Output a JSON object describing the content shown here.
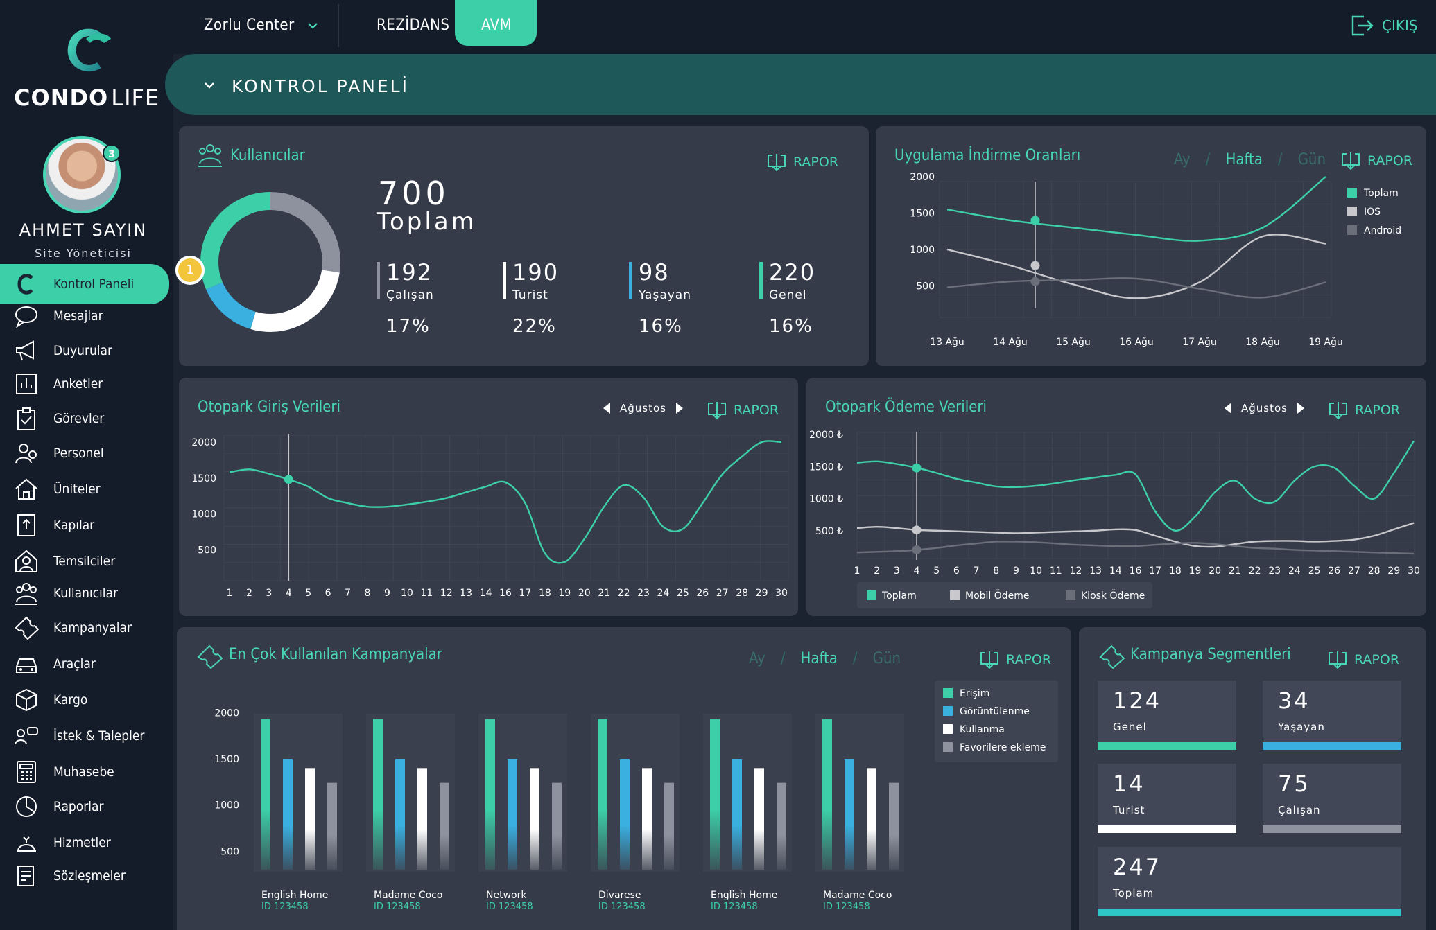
{
  "colors": {
    "teal": "#3ccfa8",
    "blue": "#3ab0e0",
    "white": "#ffffff",
    "gray": "#8e929e",
    "darkgray": "#5c6270",
    "yellow": "#f3c53c"
  },
  "top": {
    "location": "Zorlu Center",
    "tab_rezidans": "REZİDANS",
    "tab_avm": "AVM",
    "logout": "ÇIKIŞ"
  },
  "brand": {
    "condo": "CONDO",
    "life": "LIFE"
  },
  "profile": {
    "name": "AHMET SAYIN",
    "role": "Site Yöneticisi",
    "badge": "3"
  },
  "page": {
    "title": "KONTROL PANELİ"
  },
  "sidebar": {
    "items": [
      {
        "label": "Kontrol Paneli",
        "icon": "condo-logo-icon"
      },
      {
        "label": "Mesajlar",
        "icon": "chat-icon"
      },
      {
        "label": "Duyurular",
        "icon": "megaphone-icon"
      },
      {
        "label": "Anketler",
        "icon": "poll-chart-icon"
      },
      {
        "label": "Görevler",
        "icon": "clipboard-check-icon"
      },
      {
        "label": "Personel",
        "icon": "staff-icon"
      },
      {
        "label": "Üniteler",
        "icon": "home-icon"
      },
      {
        "label": "Kapılar",
        "icon": "door-icon"
      },
      {
        "label": "Temsilciler",
        "icon": "representative-icon"
      },
      {
        "label": "Kullanıcılar",
        "icon": "users-icon"
      },
      {
        "label": "Kampanyalar",
        "icon": "ticket-icon"
      },
      {
        "label": "Araçlar",
        "icon": "car-icon"
      },
      {
        "label": "Kargo",
        "icon": "package-icon"
      },
      {
        "label": "İstek & Talepler",
        "icon": "request-icon"
      },
      {
        "label": "Muhasebe",
        "icon": "calculator-icon"
      },
      {
        "label": "Raporlar",
        "icon": "report-icon"
      },
      {
        "label": "Hizmetler",
        "icon": "service-icon"
      },
      {
        "label": "Sözleşmeler",
        "icon": "contract-icon"
      }
    ]
  },
  "common": {
    "rapor": "RAPOR",
    "ay": "Ay",
    "hafta": "Hafta",
    "gun": "Gün",
    "sep": "/",
    "month": "Ağustos"
  },
  "users": {
    "title": "Kullanıcılar",
    "total": "700",
    "total_label": "Toplam",
    "marker": "1",
    "stats": [
      {
        "value": "192",
        "label": "Çalışan",
        "pct": "17%"
      },
      {
        "value": "190",
        "label": "Turist",
        "pct": "22%"
      },
      {
        "value": "98",
        "label": "Yaşayan",
        "pct": "16%"
      },
      {
        "value": "220",
        "label": "Genel",
        "pct": "16%"
      }
    ]
  },
  "downloads": {
    "title": "Uygulama İndirme Oranları"
  },
  "parking_entry": {
    "title": "Otopark Giriş Verileri"
  },
  "parking_payment": {
    "title": "Otopark Ödeme Verileri"
  },
  "campaigns": {
    "title": "En Çok Kullanılan Kampanyalar"
  },
  "segments": {
    "title": "Kampanya Segmentleri",
    "items": [
      {
        "value": "124",
        "label": "Genel",
        "color": "#3ccfa8"
      },
      {
        "value": "34",
        "label": "Yaşayan",
        "color": "#3ab0e0"
      },
      {
        "value": "14",
        "label": "Turist",
        "color": "#ffffff"
      },
      {
        "value": "75",
        "label": "Çalışan",
        "color": "#8e929e"
      },
      {
        "value": "247",
        "label": "Toplam",
        "color": "#2ec6c6"
      }
    ]
  },
  "chart_data": [
    {
      "type": "pie",
      "title": "Kullanıcılar",
      "categories": [
        "Çalışan",
        "Turist",
        "Yaşayan",
        "Genel"
      ],
      "values": [
        192,
        190,
        98,
        220
      ]
    },
    {
      "type": "line",
      "title": "Uygulama İndirme Oranları",
      "x": [
        "13 Ağu",
        "14 Ağu",
        "15 Ağu",
        "16 Ağu",
        "17 Ağu",
        "18 Ağu",
        "19 Ağu"
      ],
      "ylim": [
        0,
        2000
      ],
      "yticks": [
        500,
        1000,
        1500,
        2000
      ],
      "legend": "right",
      "series": [
        {
          "name": "Toplam",
          "color": "#3ccfa8",
          "values": [
            1550,
            1400,
            1300,
            1200,
            1120,
            1300,
            2000
          ]
        },
        {
          "name": "IOS",
          "color": "#c8c8cc",
          "values": [
            1000,
            780,
            520,
            330,
            550,
            1180,
            1080
          ]
        },
        {
          "name": "Android",
          "color": "#6a6f7a",
          "values": [
            480,
            560,
            580,
            600,
            460,
            340,
            550
          ]
        }
      ]
    },
    {
      "type": "line",
      "title": "Otopark Giriş Verileri",
      "x": [
        1,
        2,
        3,
        4,
        5,
        6,
        7,
        8,
        9,
        10,
        11,
        12,
        13,
        14,
        16,
        17,
        18,
        19,
        20,
        21,
        22,
        23,
        24,
        25,
        26,
        27,
        28,
        29,
        30
      ],
      "ylim": [
        0,
        2000
      ],
      "yticks": [
        500,
        1000,
        1500,
        2000
      ],
      "series": [
        {
          "name": "",
          "color": "#3ccfa8",
          "values": [
            1580,
            1620,
            1560,
            1480,
            1380,
            1220,
            1150,
            1100,
            1100,
            1130,
            1170,
            1220,
            1300,
            1380,
            1440,
            1150,
            450,
            330,
            650,
            1100,
            1400,
            1230,
            820,
            790,
            1150,
            1550,
            1800,
            2000,
            2000
          ]
        }
      ]
    },
    {
      "type": "line",
      "title": "Otopark Ödeme Verileri",
      "x": [
        1,
        2,
        3,
        4,
        5,
        6,
        7,
        8,
        9,
        10,
        11,
        12,
        13,
        14,
        16,
        17,
        18,
        19,
        20,
        21,
        22,
        23,
        24,
        25,
        26,
        27,
        28,
        29,
        30
      ],
      "ylim": [
        0,
        2000
      ],
      "yticks": [
        "500 ₺",
        "1000 ₺",
        "1500 ₺",
        "2000 ₺"
      ],
      "legend": "bottom",
      "series": [
        {
          "name": "Toplam",
          "color": "#3ccfa8",
          "values": [
            1560,
            1580,
            1540,
            1480,
            1400,
            1310,
            1250,
            1190,
            1180,
            1200,
            1240,
            1290,
            1330,
            1370,
            1380,
            800,
            500,
            720,
            1100,
            1280,
            1000,
            950,
            1280,
            1500,
            1480,
            1200,
            1000,
            1400,
            1900
          ]
        },
        {
          "name": "Mobil Ödeme",
          "color": "#c8c8cc",
          "values": [
            540,
            560,
            540,
            510,
            500,
            490,
            480,
            470,
            460,
            470,
            480,
            490,
            500,
            520,
            510,
            420,
            330,
            260,
            250,
            290,
            330,
            340,
            340,
            330,
            340,
            360,
            420,
            520,
            620
          ]
        },
        {
          "name": "Kiosk Ödeme",
          "color": "#6a6f7a",
          "values": [
            160,
            170,
            180,
            200,
            230,
            270,
            300,
            330,
            330,
            320,
            300,
            280,
            270,
            260,
            260,
            280,
            300,
            310,
            290,
            260,
            230,
            220,
            200,
            190,
            180,
            170,
            160,
            150,
            140
          ]
        }
      ]
    },
    {
      "type": "bar",
      "title": "En Çok Kullanılan Kampanyalar",
      "categories": [
        "English Home",
        "Madame Coco",
        "Network",
        "Divarese",
        "English Home",
        "Madame Coco"
      ],
      "subcategories": [
        "ID 123458",
        "ID 123458",
        "ID 123458",
        "ID 123458",
        "ID 123458",
        "ID 123458"
      ],
      "ylim": [
        300,
        2100
      ],
      "yticks": [
        500,
        1000,
        1500,
        2000
      ],
      "series": [
        {
          "name": "Erişim",
          "color": "#3ccfa8",
          "values": [
            1930,
            1930,
            1930,
            1930,
            1930,
            1930
          ]
        },
        {
          "name": "Görüntülenme",
          "color": "#3ab0e0",
          "values": [
            1500,
            1500,
            1500,
            1500,
            1500,
            1500
          ]
        },
        {
          "name": "Kullanma",
          "color": "#ffffff",
          "values": [
            1400,
            1400,
            1400,
            1400,
            1400,
            1400
          ]
        },
        {
          "name": "Favorilere ekleme",
          "color": "#8e929e",
          "values": [
            1240,
            1240,
            1240,
            1240,
            1240,
            1240
          ]
        }
      ]
    }
  ]
}
